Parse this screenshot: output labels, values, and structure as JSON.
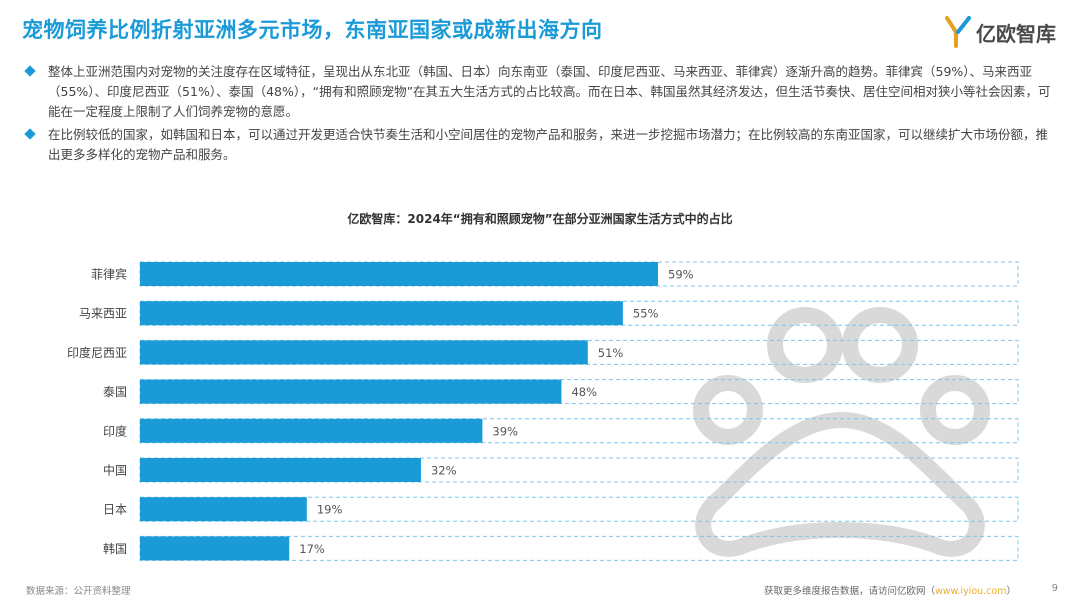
{
  "header": {
    "title": "宠物饲养比例折射亚洲多元市场，东南亚国家或成新出海方向",
    "logo_text": "亿欧智库"
  },
  "bullets": [
    "整体上亚洲范围内对宠物的关注度存在区域特征，呈现出从东北亚（韩国、日本）向东南亚（泰国、印度尼西亚、马来西亚、菲律宾）逐渐升高的趋势。菲律宾（59%）、马来西亚（55%）、印度尼西亚（51%）、泰国（48%），“拥有和照顾宠物”在其五大生活方式的占比较高。而在日本、韩国虽然其经济发达，但生活节奏快、居住空间相对狭小等社会因素，可能在一定程度上限制了人们饲养宠物的意愿。",
    "在比例较低的国家，如韩国和日本，可以通过开发更适合快节奏生活和小空间居住的宠物产品和服务，来进一步挖掘市场潜力；在比例较高的东南亚国家，可以继续扩大市场份额，推出更多多样化的宠物产品和服务。"
  ],
  "colors": {
    "accent": "#1a9bd7",
    "bar": "#1a9bd7",
    "track_border": "#7cc4e8",
    "watermark": "#d9d9d9"
  },
  "chart_data": {
    "type": "bar",
    "orientation": "horizontal",
    "title": "亿欧智库：2024年“拥有和照顾宠物”在部分亚洲国家生活方式中的占比",
    "categories": [
      "菲律宾",
      "马来西亚",
      "印度尼西亚",
      "泰国",
      "印度",
      "中国",
      "日本",
      "韩国"
    ],
    "values": [
      59,
      55,
      51,
      48,
      39,
      32,
      19,
      17
    ],
    "value_labels": [
      "59%",
      "55%",
      "51%",
      "48%",
      "39%",
      "32%",
      "19%",
      "17%"
    ],
    "unit": "%",
    "xlim": [
      0,
      100
    ],
    "grid": false,
    "legend": "none",
    "background_track": "dashed outline to 100%"
  },
  "footer": {
    "source": "数据来源：公开资料整理",
    "link_prefix": "获取更多维度报告数据，请访问亿欧网（",
    "link_url": "www.iyiou.com",
    "link_suffix": "）",
    "page_number": "9"
  }
}
